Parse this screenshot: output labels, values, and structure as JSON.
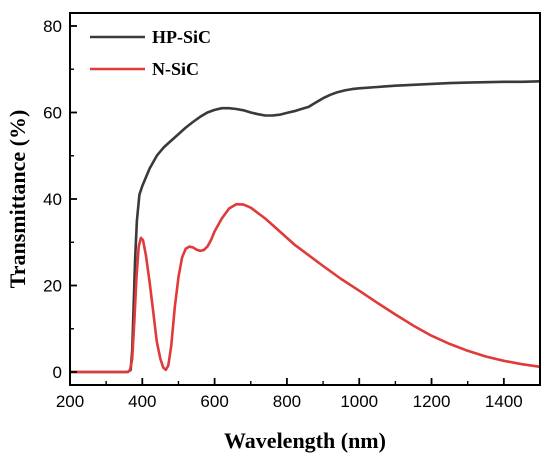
{
  "chart_data": {
    "type": "line",
    "title": "",
    "xlabel": "Wavelength (nm)",
    "ylabel": "Transmittance (%)",
    "xlim": [
      200,
      1500
    ],
    "ylim": [
      -3,
      83
    ],
    "xticks": [
      200,
      400,
      600,
      800,
      1000,
      1200,
      1400
    ],
    "yticks": [
      0,
      20,
      40,
      60,
      80
    ],
    "xtick_labels": [
      "200",
      "400",
      "600",
      "800",
      "1000",
      "1200",
      "1400"
    ],
    "ytick_labels": [
      "0",
      "20",
      "40",
      "60",
      "80"
    ],
    "grid": false,
    "legend": "top-left",
    "series": [
      {
        "name": "HP-SiC",
        "color": "#3a3a3a",
        "points": [
          [
            200,
            0
          ],
          [
            360,
            0
          ],
          [
            368,
            0.5
          ],
          [
            372,
            5
          ],
          [
            376,
            15
          ],
          [
            380,
            26
          ],
          [
            385,
            35
          ],
          [
            392,
            41
          ],
          [
            400,
            43
          ],
          [
            420,
            47
          ],
          [
            440,
            50
          ],
          [
            460,
            52
          ],
          [
            480,
            53.5
          ],
          [
            500,
            55
          ],
          [
            520,
            56.5
          ],
          [
            540,
            57.8
          ],
          [
            560,
            59
          ],
          [
            580,
            60
          ],
          [
            600,
            60.6
          ],
          [
            620,
            61
          ],
          [
            640,
            61
          ],
          [
            660,
            60.8
          ],
          [
            680,
            60.5
          ],
          [
            700,
            60
          ],
          [
            720,
            59.6
          ],
          [
            740,
            59.3
          ],
          [
            760,
            59.3
          ],
          [
            780,
            59.5
          ],
          [
            800,
            59.9
          ],
          [
            820,
            60.3
          ],
          [
            840,
            60.8
          ],
          [
            860,
            61.3
          ],
          [
            880,
            62.3
          ],
          [
            900,
            63.3
          ],
          [
            920,
            64.1
          ],
          [
            940,
            64.7
          ],
          [
            960,
            65.1
          ],
          [
            980,
            65.4
          ],
          [
            1000,
            65.6
          ],
          [
            1050,
            65.9
          ],
          [
            1100,
            66.2
          ],
          [
            1150,
            66.4
          ],
          [
            1200,
            66.6
          ],
          [
            1250,
            66.8
          ],
          [
            1300,
            66.9
          ],
          [
            1350,
            67
          ],
          [
            1400,
            67.1
          ],
          [
            1450,
            67.1
          ],
          [
            1500,
            67.2
          ]
        ]
      },
      {
        "name": "N-SiC",
        "color": "#e03a3a",
        "points": [
          [
            200,
            0
          ],
          [
            360,
            0
          ],
          [
            366,
            0.5
          ],
          [
            372,
            3
          ],
          [
            378,
            12
          ],
          [
            384,
            22
          ],
          [
            390,
            29
          ],
          [
            396,
            31
          ],
          [
            402,
            30.5
          ],
          [
            410,
            27
          ],
          [
            420,
            21
          ],
          [
            430,
            14
          ],
          [
            440,
            7
          ],
          [
            450,
            3
          ],
          [
            458,
            1
          ],
          [
            465,
            0.5
          ],
          [
            472,
            1.5
          ],
          [
            480,
            6
          ],
          [
            490,
            15
          ],
          [
            500,
            22
          ],
          [
            510,
            26.5
          ],
          [
            520,
            28.5
          ],
          [
            530,
            29
          ],
          [
            540,
            28.8
          ],
          [
            550,
            28.3
          ],
          [
            560,
            28
          ],
          [
            570,
            28.2
          ],
          [
            580,
            29
          ],
          [
            590,
            30.5
          ],
          [
            600,
            32.5
          ],
          [
            620,
            35.5
          ],
          [
            640,
            37.8
          ],
          [
            660,
            38.8
          ],
          [
            680,
            38.7
          ],
          [
            700,
            38
          ],
          [
            740,
            35.5
          ],
          [
            780,
            32.5
          ],
          [
            820,
            29.5
          ],
          [
            860,
            27
          ],
          [
            900,
            24.5
          ],
          [
            950,
            21.5
          ],
          [
            1000,
            18.8
          ],
          [
            1050,
            16
          ],
          [
            1100,
            13.3
          ],
          [
            1150,
            10.7
          ],
          [
            1200,
            8.4
          ],
          [
            1250,
            6.5
          ],
          [
            1300,
            4.9
          ],
          [
            1350,
            3.6
          ],
          [
            1400,
            2.6
          ],
          [
            1450,
            1.8
          ],
          [
            1500,
            1.2
          ]
        ]
      }
    ]
  }
}
